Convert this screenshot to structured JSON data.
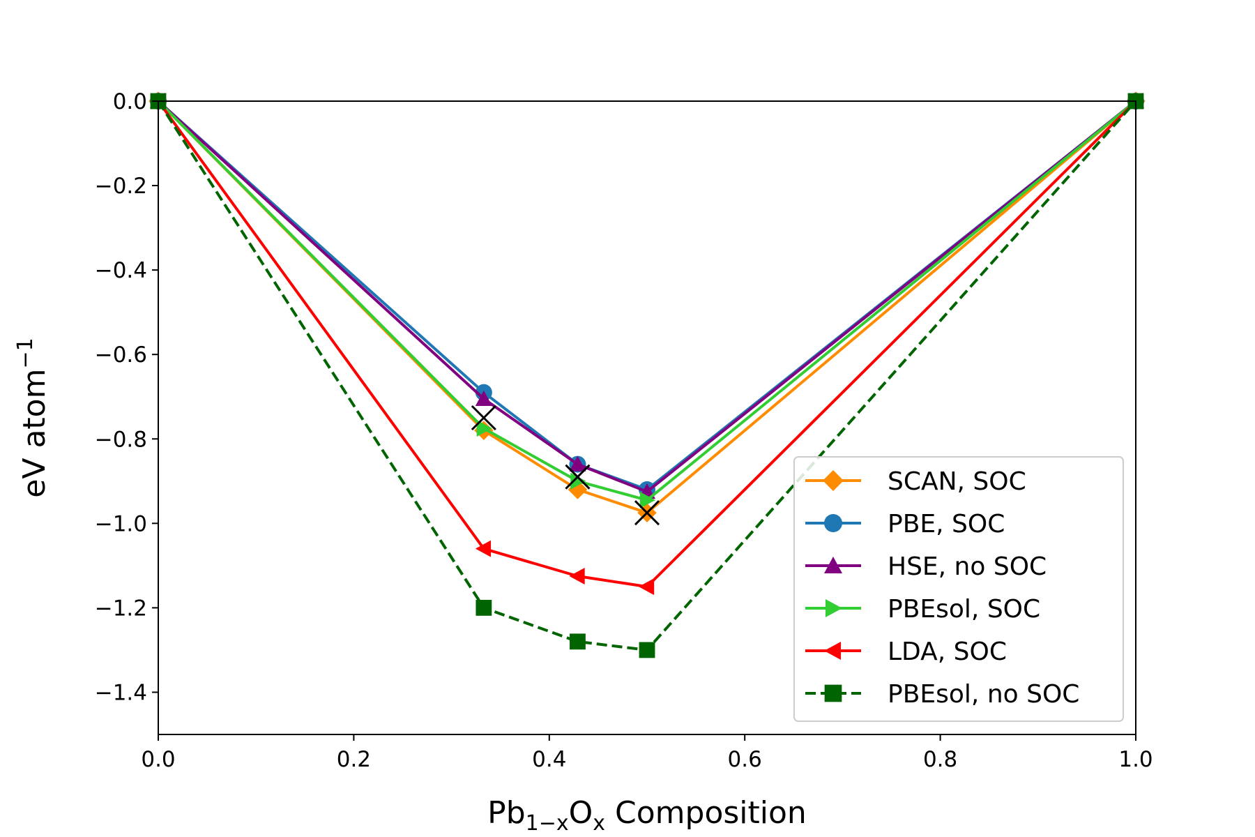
{
  "chart_data": {
    "type": "line",
    "title": "",
    "xlabel": {
      "base": "Pb",
      "sub1": "1−x",
      "mid": "O",
      "sub2": "x",
      "tail": " Composition"
    },
    "ylabel": {
      "base": "eV atom",
      "sup": "−1"
    },
    "xlim": [
      0.0,
      1.0
    ],
    "ylim": [
      -1.5,
      0.0
    ],
    "xticks": [
      0.0,
      0.2,
      0.4,
      0.6,
      0.8,
      1.0
    ],
    "xtick_labels": [
      "0.0",
      "0.2",
      "0.4",
      "0.6",
      "0.8",
      "1.0"
    ],
    "yticks": [
      0.0,
      -0.2,
      -0.4,
      -0.6,
      -0.8,
      -1.0,
      -1.2,
      -1.4
    ],
    "ytick_labels": [
      "0.0",
      "−0.2",
      "−0.4",
      "−0.6",
      "−0.8",
      "−1.0",
      "−1.2",
      "−1.4"
    ],
    "grid": false,
    "legend_position": "lower-right",
    "series": [
      {
        "name": "SCAN, SOC",
        "color": "#ff8c00",
        "marker": "diamond",
        "dash": "solid",
        "x": [
          0.0,
          0.333,
          0.429,
          0.5,
          1.0
        ],
        "y": [
          0.0,
          -0.78,
          -0.92,
          -0.975,
          0.0
        ]
      },
      {
        "name": "PBE, SOC",
        "color": "#1f77b4",
        "marker": "circle",
        "dash": "solid",
        "x": [
          0.0,
          0.333,
          0.429,
          0.5,
          1.0
        ],
        "y": [
          0.0,
          -0.69,
          -0.86,
          -0.92,
          0.0
        ]
      },
      {
        "name": "HSE, no SOC",
        "color": "#800080",
        "marker": "triangle-up",
        "dash": "solid",
        "x": [
          0.0,
          0.333,
          0.429,
          0.5,
          1.0
        ],
        "y": [
          0.0,
          -0.705,
          -0.86,
          -0.925,
          0.0
        ]
      },
      {
        "name": "PBEsol, SOC",
        "color": "#32cd32",
        "marker": "triangle-right",
        "dash": "solid",
        "x": [
          0.0,
          0.333,
          0.429,
          0.5,
          1.0
        ],
        "y": [
          0.0,
          -0.775,
          -0.9,
          -0.945,
          0.0
        ]
      },
      {
        "name": "LDA, SOC",
        "color": "#ff0000",
        "marker": "triangle-left",
        "dash": "solid",
        "x": [
          0.0,
          0.333,
          0.429,
          0.5,
          1.0
        ],
        "y": [
          0.0,
          -1.06,
          -1.125,
          -1.15,
          0.0
        ]
      },
      {
        "name": "PBEsol, no SOC",
        "color": "#006400",
        "marker": "square",
        "dash": "dashed",
        "x": [
          0.0,
          0.333,
          0.429,
          0.5,
          1.0
        ],
        "y": [
          0.0,
          -1.2,
          -1.28,
          -1.3,
          0.0
        ]
      }
    ],
    "annotations": {
      "name": "experimental-x-markers",
      "color": "#000000",
      "marker": "x",
      "x": [
        0.333,
        0.429,
        0.5
      ],
      "y": [
        -0.75,
        -0.89,
        -0.975
      ]
    }
  }
}
